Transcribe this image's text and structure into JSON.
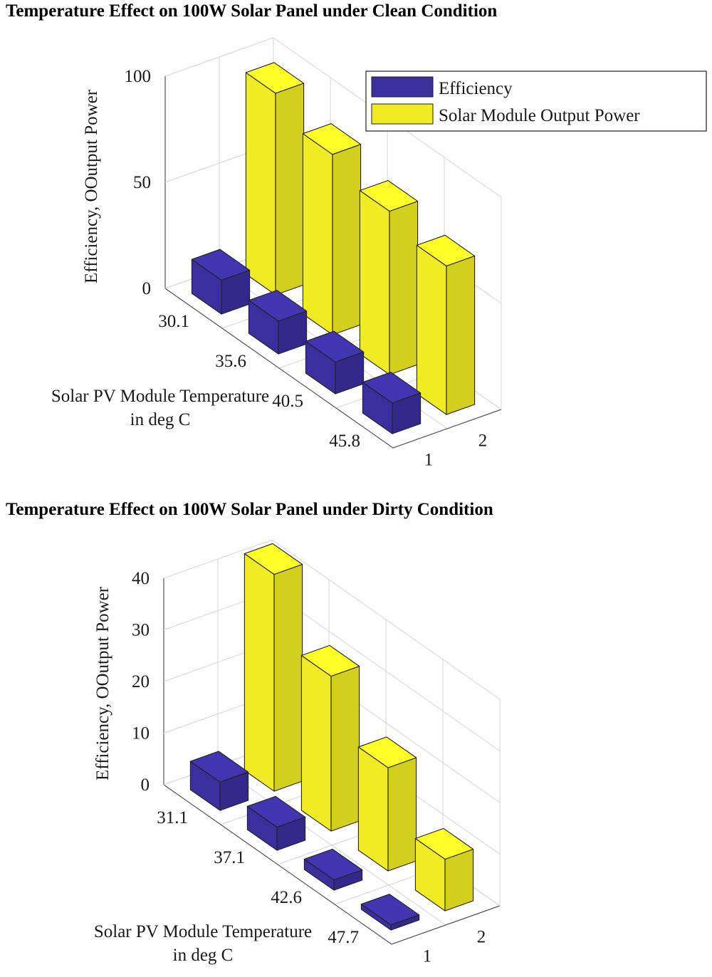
{
  "charts": [
    {
      "title": "Temperature Effect on 100W Solar Panel under Clean Condition",
      "chart_data": {
        "type": "bar",
        "style": "3d",
        "title": "Temperature Effect on 100W Solar Panel under Clean Condition",
        "categories": [
          "30.1",
          "35.6",
          "40.5",
          "45.8"
        ],
        "series_axis_ticks": [
          "1",
          "2"
        ],
        "series": [
          {
            "name": "Efficiency",
            "color": "#3b2f9e",
            "values": [
              16,
              15.5,
              15,
              14.5
            ]
          },
          {
            "name": "Solar Module Output Power",
            "color": "#f0eb23",
            "values": [
              95,
              85,
              77,
              70
            ]
          }
        ],
        "xlabel": "Solar PV Module Temperature in deg C",
        "xlabel_lines": [
          "Solar PV Module Temperature",
          "in deg C"
        ],
        "zlabel": "Efficiency, OOutput Power",
        "zlim": [
          0,
          100
        ],
        "zticks": [
          "0",
          "50",
          "100"
        ],
        "legend": {
          "position": "top-right",
          "entries": [
            "Efficiency",
            "Solar Module Output Power"
          ]
        },
        "grid": true
      }
    },
    {
      "title": "Temperature Effect on 100W Solar Panel under Dirty Condition",
      "chart_data": {
        "type": "bar",
        "style": "3d",
        "title": "Temperature Effect on 100W Solar Panel under Dirty Condition",
        "categories": [
          "31.1",
          "37.1",
          "42.6",
          "47.7"
        ],
        "series_axis_ticks": [
          "1",
          "2"
        ],
        "series": [
          {
            "name": "Efficiency",
            "color": "#3b2f9e",
            "values": [
              5.5,
              4.5,
              2,
              1
            ]
          },
          {
            "name": "Solar Module Output Power",
            "color": "#f0eb23",
            "values": [
              42,
              30,
              20,
              10
            ]
          }
        ],
        "xlabel": "Solar PV Module Temperature in deg C",
        "xlabel_lines": [
          "Solar PV Module Temperature",
          "in deg C"
        ],
        "zlabel": "Efficiency, OOutput Power",
        "zlim": [
          0,
          40
        ],
        "zticks": [
          "0",
          "10",
          "20",
          "30",
          "40"
        ],
        "grid": true
      }
    }
  ]
}
